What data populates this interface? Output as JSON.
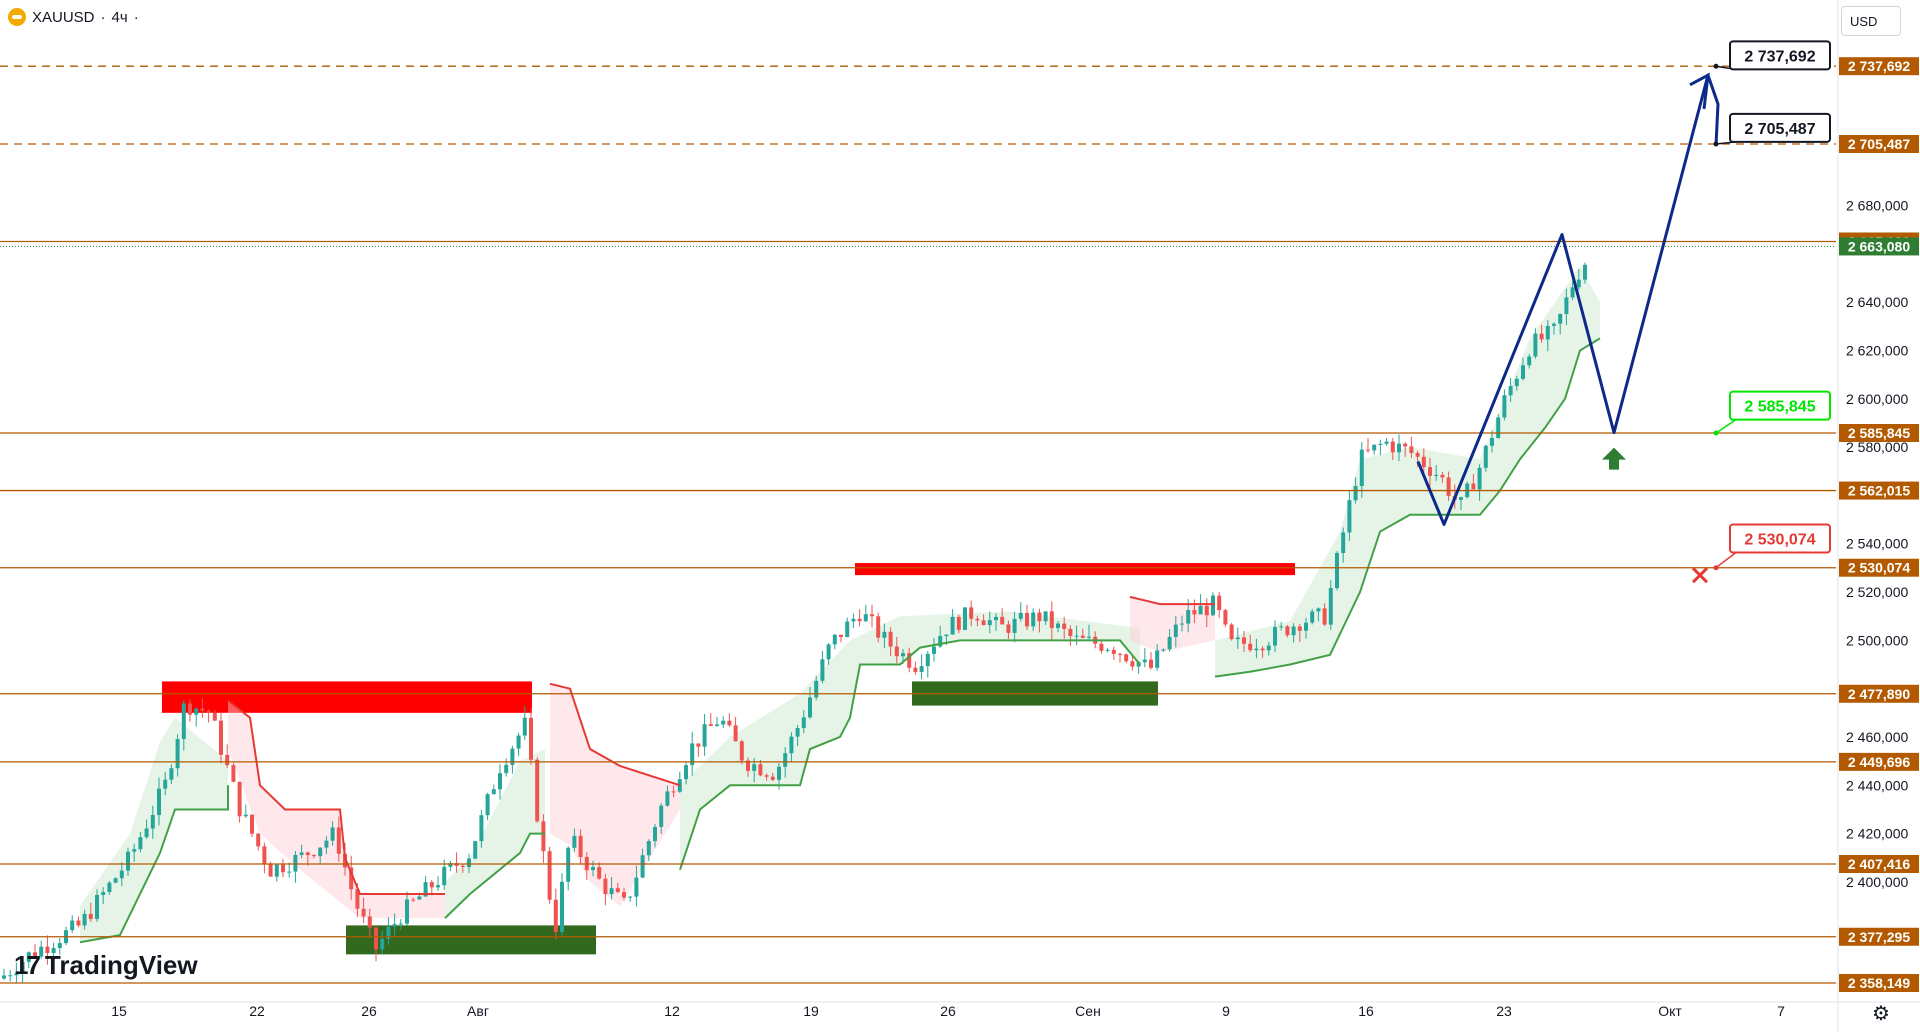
{
  "header": {
    "symbol": "XAUUSD",
    "separator1": "·",
    "interval": "4ч",
    "separator2": "·"
  },
  "currency_button": "USD",
  "logo_text": "TradingView",
  "colors": {
    "level_line": "#b35a00",
    "level_tag": "#b35a00",
    "current_price_tag": "#2e7d32",
    "path": "#0d2a8a",
    "resistance_box": "#ff0000",
    "support_box": "#33691e",
    "trail_up": "#43a047",
    "trail_down": "#e53935",
    "candle_up": "#26a69a",
    "candle_down": "#ef5350",
    "fill_up": "#c8e6c9",
    "fill_down": "#ffcdd2"
  },
  "chart_data": {
    "type": "candlestick",
    "ylim": [
      2355,
      2748
    ],
    "y_ticks": [
      "2 680,000",
      "2 640,000",
      "2 620,000",
      "2 600,000",
      "2 580,000",
      "2 540,000",
      "2 520,000",
      "2 500,000",
      "2 460,000",
      "2 440,000",
      "2 420,000",
      "2 400,000"
    ],
    "y_tick_values": [
      2680,
      2640,
      2620,
      2600,
      2580,
      2540,
      2520,
      2500,
      2460,
      2440,
      2420,
      2400
    ],
    "x_ticks": [
      "15",
      "22",
      "26",
      "Авг",
      "12",
      "19",
      "26",
      "Сен",
      "9",
      "16",
      "23",
      "Окт",
      "7"
    ],
    "levels": [
      {
        "value": 2737.692,
        "label": "2 737,692",
        "style": "dashed"
      },
      {
        "value": 2705.487,
        "label": "2 705,487",
        "style": "dashed"
      },
      {
        "value": 2665.12,
        "label": "2 665,120",
        "style": "solid"
      },
      {
        "value": 2585.845,
        "label": "2 585,845",
        "style": "solid"
      },
      {
        "value": 2562.015,
        "label": "2 562,015",
        "style": "solid"
      },
      {
        "value": 2530.074,
        "label": "2 530,074",
        "style": "solid"
      },
      {
        "value": 2477.89,
        "label": "2 477,890",
        "style": "solid"
      },
      {
        "value": 2449.696,
        "label": "2 449,696",
        "style": "solid"
      },
      {
        "value": 2407.416,
        "label": "2 407,416",
        "style": "solid"
      },
      {
        "value": 2377.295,
        "label": "2 377,295",
        "style": "solid"
      },
      {
        "value": 2358.149,
        "label": "2 358,149",
        "style": "solid"
      }
    ],
    "current_price": {
      "value": 2663.08,
      "label": "2 663,080"
    },
    "callouts": [
      {
        "label": "2 737,692",
        "value": 2737.692,
        "color": "#131722"
      },
      {
        "label": "2 705,487",
        "value": 2705.487,
        "color": "#131722"
      },
      {
        "label": "2 585,845",
        "value": 2585.845,
        "color": "#00e600"
      },
      {
        "label": "2 530,074",
        "value": 2530.074,
        "color": "#e53935"
      }
    ],
    "projected_path_prices": [
      2574,
      2548,
      2668,
      2586,
      2734,
      2722,
      2705
    ]
  }
}
